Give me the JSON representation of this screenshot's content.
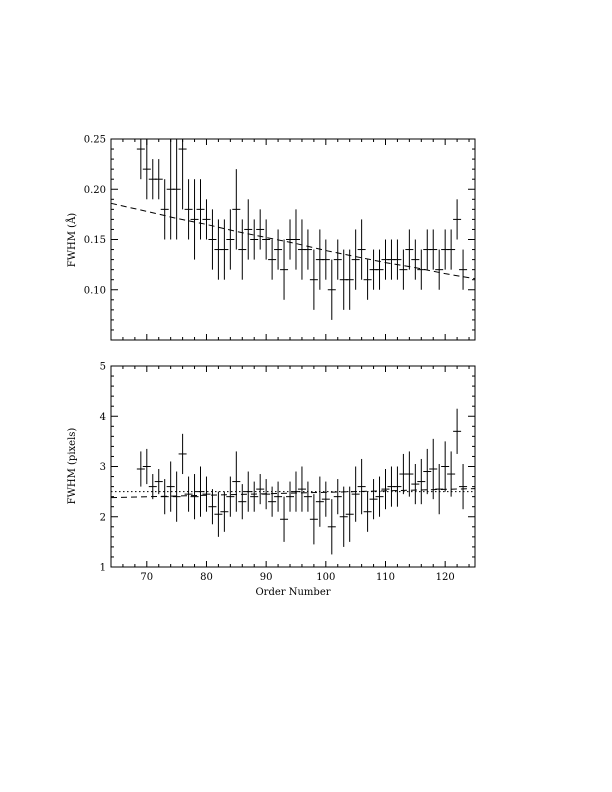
{
  "chart_data": [
    {
      "type": "scatter",
      "title": "",
      "xlabel": "",
      "ylabel": "FWHM (Å)",
      "xlim": [
        64,
        125
      ],
      "ylim": [
        0.05,
        0.25
      ],
      "yticks": [
        "0.10",
        "0.15",
        "0.20",
        "0.25"
      ],
      "xticks": [],
      "grid": false,
      "series": [
        {
          "style": "points-with-error-bars",
          "x": [
            69,
            70,
            71,
            72,
            73,
            74,
            75,
            76,
            77,
            78,
            79,
            80,
            81,
            82,
            83,
            84,
            85,
            86,
            87,
            88,
            89,
            90,
            91,
            92,
            93,
            94,
            95,
            96,
            97,
            98,
            99,
            100,
            101,
            102,
            103,
            104,
            105,
            106,
            107,
            108,
            109,
            110,
            111,
            112,
            113,
            114,
            115,
            116,
            117,
            118,
            119,
            120,
            121,
            122,
            123
          ],
          "y": [
            0.24,
            0.22,
            0.21,
            0.21,
            0.18,
            0.2,
            0.2,
            0.24,
            0.18,
            0.17,
            0.18,
            0.17,
            0.15,
            0.14,
            0.14,
            0.15,
            0.18,
            0.14,
            0.16,
            0.15,
            0.16,
            0.15,
            0.13,
            0.14,
            0.12,
            0.15,
            0.15,
            0.14,
            0.14,
            0.11,
            0.13,
            0.13,
            0.1,
            0.13,
            0.11,
            0.11,
            0.13,
            0.14,
            0.11,
            0.12,
            0.12,
            0.13,
            0.13,
            0.13,
            0.12,
            0.14,
            0.13,
            0.12,
            0.14,
            0.14,
            0.12,
            0.14,
            0.14,
            0.17,
            0.12
          ],
          "err": [
            0.03,
            0.03,
            0.02,
            0.02,
            0.03,
            0.05,
            0.05,
            0.06,
            0.03,
            0.04,
            0.03,
            0.02,
            0.03,
            0.03,
            0.03,
            0.03,
            0.04,
            0.03,
            0.03,
            0.02,
            0.02,
            0.02,
            0.02,
            0.02,
            0.03,
            0.02,
            0.03,
            0.03,
            0.02,
            0.03,
            0.03,
            0.02,
            0.03,
            0.02,
            0.03,
            0.03,
            0.03,
            0.03,
            0.02,
            0.02,
            0.02,
            0.02,
            0.02,
            0.02,
            0.02,
            0.02,
            0.02,
            0.02,
            0.02,
            0.02,
            0.02,
            0.02,
            0.02,
            0.02,
            0.02
          ]
        },
        {
          "style": "dashed-line",
          "x": [
            64,
            70,
            75,
            80,
            85,
            90,
            95,
            100,
            105,
            110,
            115,
            120,
            125
          ],
          "y": [
            0.186,
            0.178,
            0.171,
            0.165,
            0.158,
            0.152,
            0.146,
            0.139,
            0.133,
            0.127,
            0.122,
            0.116,
            0.111
          ]
        }
      ]
    },
    {
      "type": "scatter",
      "title": "",
      "xlabel": "Order Number",
      "ylabel": "FWHM (pixels)",
      "xlim": [
        64,
        125
      ],
      "ylim": [
        1,
        5
      ],
      "xticks": [
        "70",
        "80",
        "90",
        "100",
        "110",
        "120"
      ],
      "yticks": [
        "1",
        "2",
        "3",
        "4",
        "5"
      ],
      "grid": false,
      "series": [
        {
          "style": "points-with-error-bars",
          "x": [
            69,
            70,
            71,
            72,
            73,
            74,
            75,
            76,
            77,
            78,
            79,
            80,
            81,
            82,
            83,
            84,
            85,
            86,
            87,
            88,
            89,
            90,
            91,
            92,
            93,
            94,
            95,
            96,
            97,
            98,
            99,
            100,
            101,
            102,
            103,
            104,
            105,
            106,
            107,
            108,
            109,
            110,
            111,
            112,
            113,
            114,
            115,
            116,
            117,
            118,
            119,
            120,
            121,
            122,
            123
          ],
          "y": [
            2.95,
            3.0,
            2.6,
            2.7,
            2.4,
            2.6,
            2.4,
            3.25,
            2.45,
            2.4,
            2.5,
            2.45,
            2.2,
            2.05,
            2.1,
            2.4,
            2.7,
            2.3,
            2.5,
            2.4,
            2.55,
            2.45,
            2.3,
            2.4,
            1.95,
            2.4,
            2.5,
            2.55,
            2.4,
            1.95,
            2.3,
            2.35,
            1.8,
            2.4,
            2.0,
            2.05,
            2.45,
            2.6,
            2.1,
            2.35,
            2.4,
            2.55,
            2.6,
            2.6,
            2.85,
            2.85,
            2.65,
            2.7,
            2.9,
            2.95,
            2.55,
            3.0,
            2.85,
            3.7,
            2.6
          ],
          "err": [
            0.35,
            0.35,
            0.25,
            0.25,
            0.35,
            0.5,
            0.5,
            0.4,
            0.35,
            0.45,
            0.5,
            0.35,
            0.35,
            0.45,
            0.4,
            0.4,
            0.6,
            0.35,
            0.4,
            0.3,
            0.3,
            0.3,
            0.3,
            0.3,
            0.45,
            0.3,
            0.4,
            0.45,
            0.3,
            0.5,
            0.5,
            0.35,
            0.55,
            0.35,
            0.6,
            0.55,
            0.55,
            0.55,
            0.4,
            0.4,
            0.4,
            0.4,
            0.4,
            0.4,
            0.4,
            0.45,
            0.4,
            0.45,
            0.45,
            0.6,
            0.5,
            0.5,
            0.45,
            0.45,
            0.45
          ]
        },
        {
          "style": "dashed-line",
          "x": [
            64,
            125
          ],
          "y": [
            2.38,
            2.56
          ]
        },
        {
          "style": "dotted-line",
          "x": [
            64,
            125
          ],
          "y": [
            2.5,
            2.5
          ]
        }
      ]
    }
  ]
}
